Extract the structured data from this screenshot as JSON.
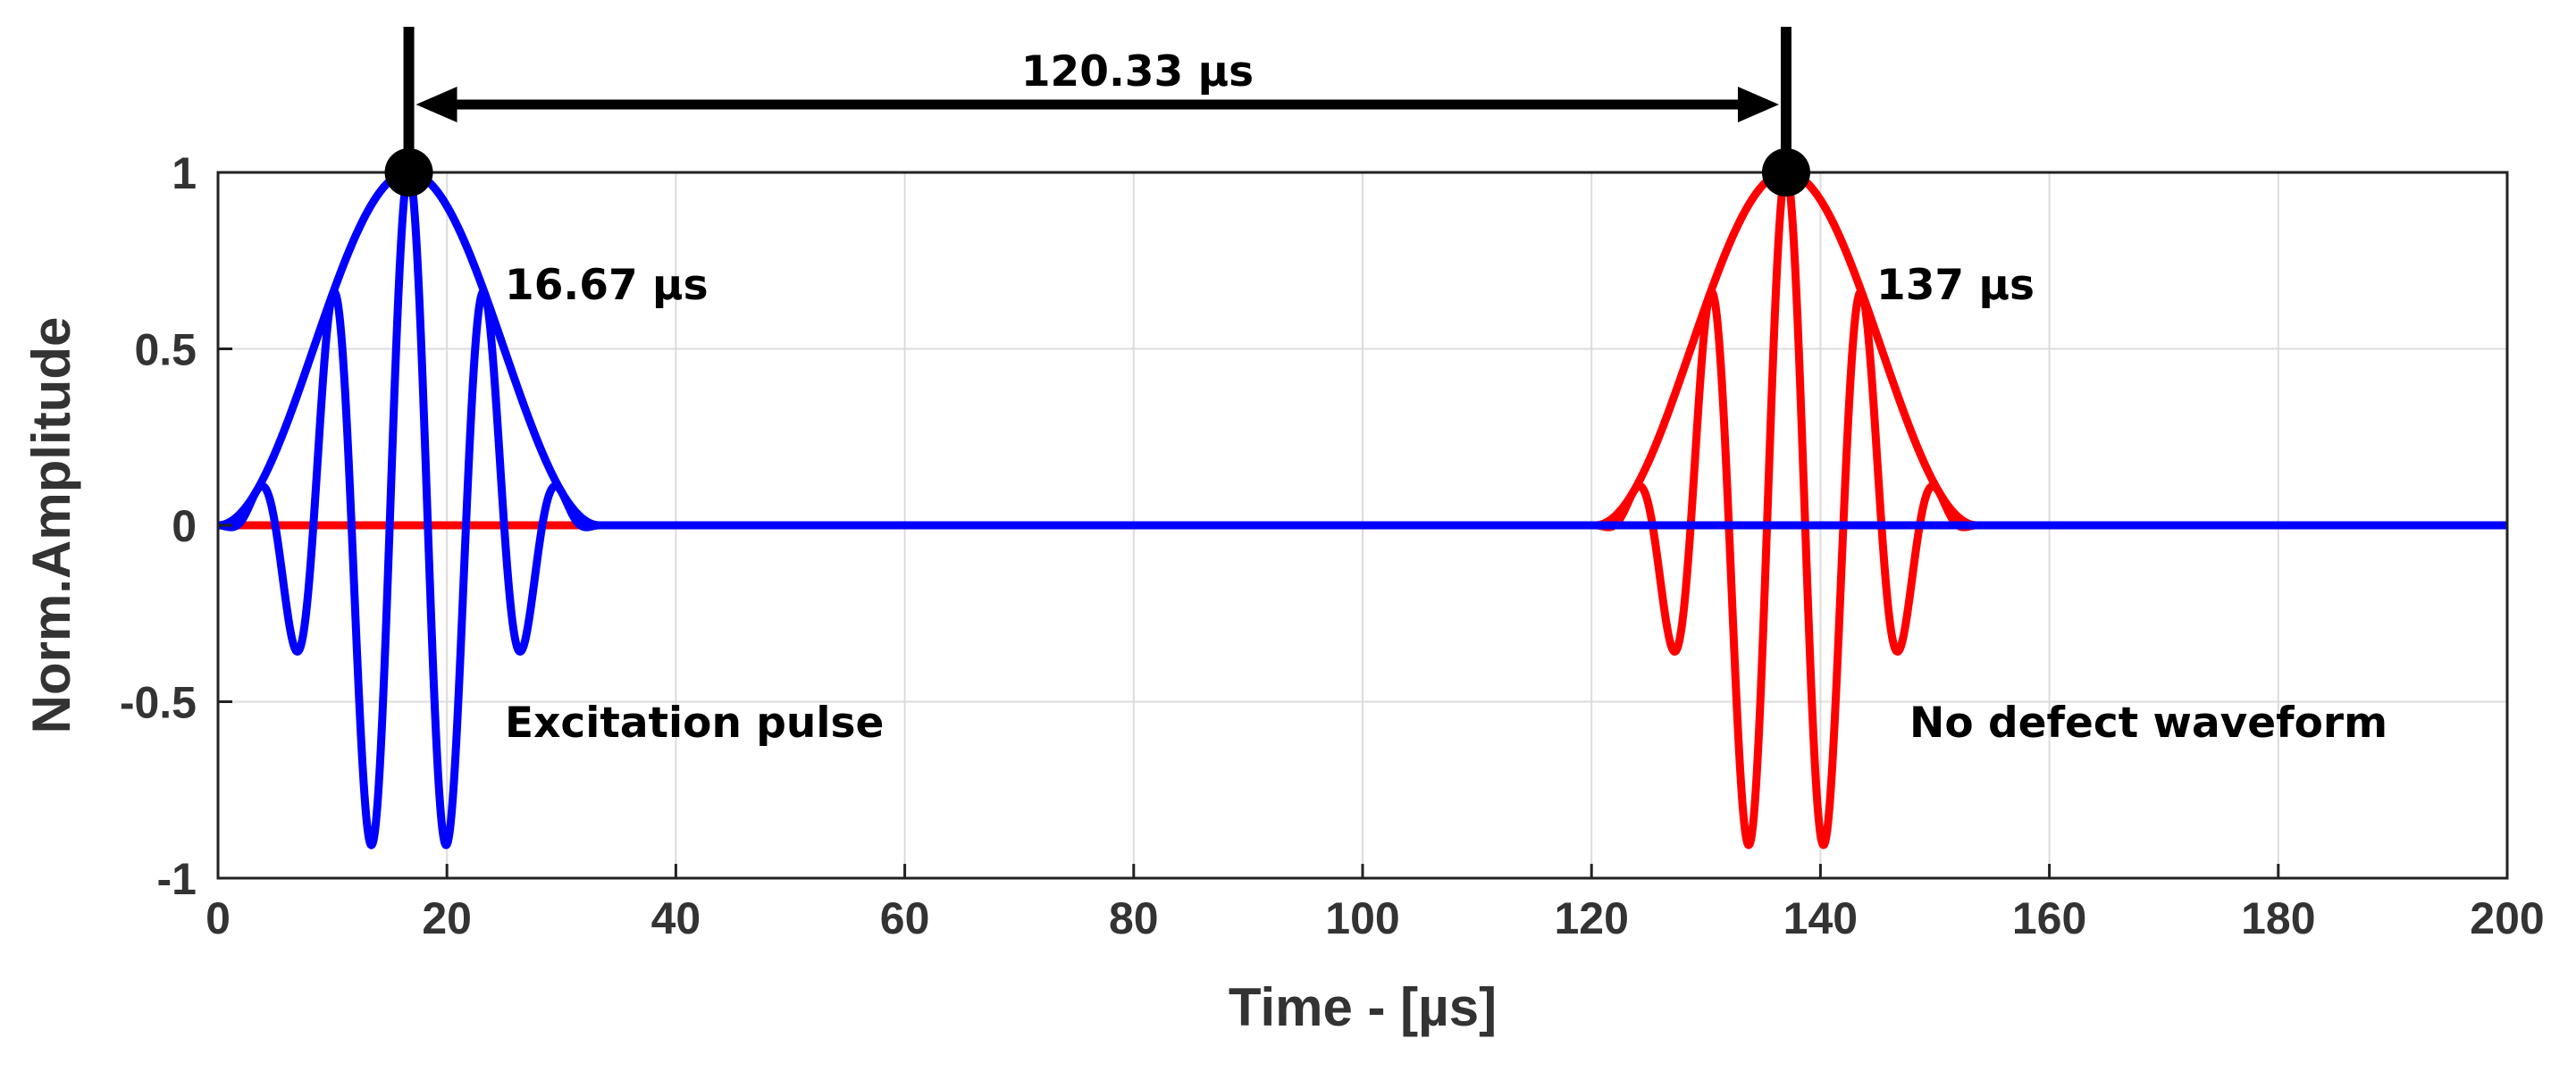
{
  "chart_data": {
    "type": "line",
    "xlabel": "Time - [µs]",
    "ylabel": "Norm.Amplitude",
    "xlim": [
      0,
      200
    ],
    "ylim": [
      -1,
      1
    ],
    "xticks": [
      0,
      20,
      40,
      60,
      80,
      100,
      120,
      140,
      160,
      180,
      200
    ],
    "yticks": [
      -1,
      -0.5,
      0,
      0.5,
      1
    ],
    "xtick_labels": [
      "0",
      "20",
      "40",
      "60",
      "80",
      "100",
      "120",
      "140",
      "160",
      "180",
      "200"
    ],
    "ytick_labels": [
      "-1",
      "-0.5",
      "0",
      "0.5",
      "1"
    ],
    "grid": true,
    "series": [
      {
        "color": "#0000ff",
        "signal": "5-cycle Hanning-windowed tone burst",
        "start": 0,
        "end": 33.33,
        "peak_time": 16.67,
        "peak_amplitude": 1,
        "cycles": 5,
        "envelope": true
      },
      {
        "color": "#ff0000",
        "signal": "5-cycle Hanning-windowed tone burst",
        "start": 120.33,
        "end": 153.67,
        "peak_time": 137,
        "peak_amplitude": 1,
        "cycles": 5,
        "envelope": true
      }
    ],
    "markers": [
      {
        "x": 16.67,
        "y": 1
      },
      {
        "x": 137,
        "y": 1
      }
    ],
    "annotations": {
      "interval": "120.33 µs",
      "peak1": "16.67 µs",
      "peak2": "137 µs",
      "label1": "Excitation pulse",
      "label2": "No defect waveform"
    }
  }
}
